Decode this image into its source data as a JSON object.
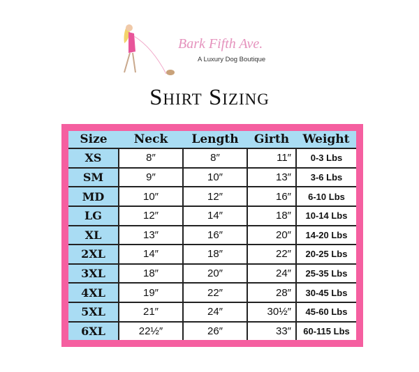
{
  "logo": {
    "brand": "Bark Fifth Ave.",
    "tagline": "A Luxury Dog Boutique"
  },
  "title": "Shirt Sizing",
  "colors": {
    "frame": "#f55fa0",
    "header": "#a9dcf3"
  },
  "table": {
    "headers": [
      "Size",
      "Neck",
      "Length",
      "Girth",
      "Weight"
    ],
    "rows": [
      [
        "XS",
        "8″",
        "8″",
        "11″",
        "0-3 Lbs"
      ],
      [
        "SM",
        "9″",
        "10″",
        "13″",
        "3-6 Lbs"
      ],
      [
        "MD",
        "10″",
        "12″",
        "16″",
        "6-10 Lbs"
      ],
      [
        "LG",
        "12″",
        "14″",
        "18″",
        "10-14 Lbs"
      ],
      [
        "XL",
        "13″",
        "16″",
        "20″",
        "14-20 Lbs"
      ],
      [
        "2XL",
        "14″",
        "18″",
        "22″",
        "20-25 Lbs"
      ],
      [
        "3XL",
        "18″",
        "20″",
        "24″",
        "25-35 Lbs"
      ],
      [
        "4XL",
        "19″",
        "22″",
        "28″",
        "30-45 Lbs"
      ],
      [
        "5XL",
        "21″",
        "24″",
        "30½″",
        "45-60 Lbs"
      ],
      [
        "6XL",
        "22½″",
        "26″",
        "33″",
        "60-115 Lbs"
      ]
    ]
  }
}
